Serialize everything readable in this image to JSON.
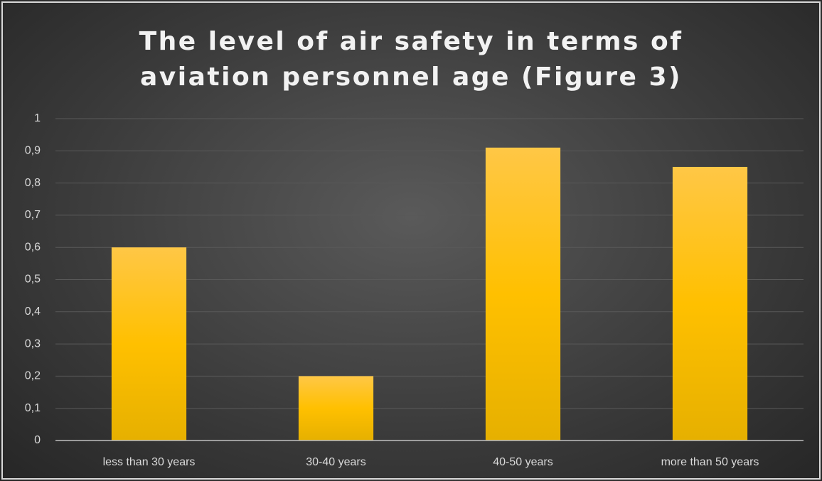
{
  "chart_data": {
    "type": "bar",
    "title": "The level of air safety in terms of aviation personnel age (Figure 3)",
    "categories": [
      "less than 30 years",
      "30-40 years",
      "40-50 years",
      "more than 50 years"
    ],
    "values": [
      0.6,
      0.2,
      0.91,
      0.85
    ],
    "color": "#ffc000",
    "ylim": [
      0,
      1
    ],
    "yticks": [
      0,
      {
        "value": 0.1,
        "label": "0,1"
      },
      {
        "value": 0.2,
        "label": "0,2"
      },
      {
        "value": 0.3,
        "label": "0,3"
      },
      {
        "value": 0.4,
        "label": "0,4"
      },
      {
        "value": 0.5,
        "label": "0,5"
      },
      {
        "value": 0.6,
        "label": "0,6"
      },
      {
        "value": 0.7,
        "label": "0,7"
      },
      {
        "value": 0.8,
        "label": "0,8"
      },
      {
        "value": 0.9,
        "label": "0,9"
      },
      1
    ],
    "grid": true
  }
}
